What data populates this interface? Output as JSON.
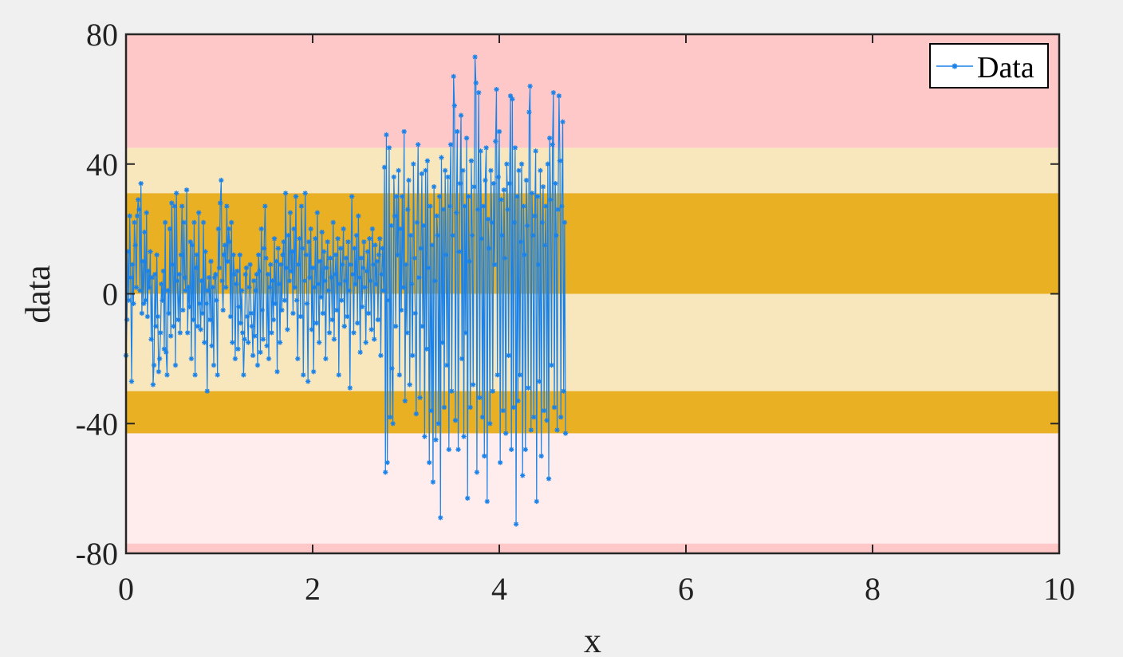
{
  "chart_data": {
    "type": "line",
    "title": "",
    "xlabel": "x",
    "ylabel": "data",
    "xlim": [
      0,
      10
    ],
    "ylim": [
      -80,
      80
    ],
    "xticks": [
      0,
      2,
      4,
      6,
      8,
      10
    ],
    "xtick_labels": [
      "0",
      "2",
      "4",
      "6",
      "8",
      "10"
    ],
    "yticks": [
      -80,
      -40,
      0,
      40,
      80
    ],
    "ytick_labels": [
      "-80",
      "-40",
      "0",
      "40",
      "80"
    ],
    "grid": false,
    "legend": {
      "placement": "top-right",
      "entries": [
        "Data"
      ]
    },
    "bands": [
      {
        "from": 45,
        "to": 80,
        "color": "#ffc8c8"
      },
      {
        "from": 31,
        "to": 45,
        "color": "#f8e6bd"
      },
      {
        "from": 0,
        "to": 31,
        "color": "#eab024"
      },
      {
        "from": -30,
        "to": 0,
        "color": "#f8e6bd"
      },
      {
        "from": -43,
        "to": -30,
        "color": "#eab024"
      },
      {
        "from": -77,
        "to": -43,
        "color": "#ffecec"
      },
      {
        "from": -80,
        "to": -77,
        "color": "#ffc8c8"
      }
    ],
    "series": [
      {
        "name": "Data",
        "color": "#1a82e8",
        "marker": "asterisk",
        "x_start": 0,
        "x_step": 0.01,
        "values": [
          -19,
          -8,
          13,
          -2,
          24,
          5,
          -27,
          9,
          -3,
          22,
          15,
          2,
          24,
          29,
          26,
          1,
          34,
          -6,
          10,
          -3,
          19,
          -2,
          25,
          -7,
          7,
          2,
          13,
          -14,
          5,
          -28,
          -22,
          6,
          -10,
          12,
          -7,
          -24,
          -20,
          -12,
          3,
          -2,
          7,
          -17,
          22,
          -18,
          -25,
          1,
          -6,
          20,
          -13,
          28,
          9,
          -10,
          27,
          -22,
          31,
          4,
          -8,
          6,
          -12,
          12,
          27,
          -5,
          22,
          5,
          1,
          32,
          -12,
          2,
          -4,
          16,
          -20,
          15,
          -8,
          22,
          -25,
          8,
          12,
          -10,
          25,
          -3,
          -11,
          4,
          -6,
          22,
          -15,
          13,
          -3,
          -30,
          1,
          5,
          -8,
          10,
          -16,
          2,
          -22,
          5,
          6,
          -2,
          -25,
          20,
          8,
          28,
          35,
          4,
          -5,
          12,
          15,
          2,
          27,
          10,
          20,
          16,
          -7,
          22,
          -15,
          12,
          6,
          -20,
          3,
          7,
          -17,
          -4,
          12,
          -9,
          1,
          -12,
          -25,
          -14,
          6,
          8,
          -7,
          -15,
          2,
          9,
          -6,
          -10,
          -19,
          4,
          -13,
          1,
          6,
          -22,
          12,
          7,
          -18,
          20,
          -5,
          -14,
          14,
          27,
          11,
          -16,
          6,
          -20,
          2,
          9,
          -12,
          4,
          -8,
          17,
          -3,
          10,
          -24,
          14,
          3,
          -15,
          9,
          -5,
          12,
          16,
          -2,
          31,
          8,
          -11,
          18,
          4,
          25,
          7,
          13,
          -6,
          20,
          2,
          30,
          -2,
          -20,
          9,
          17,
          -7,
          27,
          14,
          -25,
          4,
          31,
          12,
          -3,
          -27,
          16,
          5,
          20,
          -11,
          8,
          -24,
          2,
          17,
          -9,
          25,
          3,
          -15,
          10,
          -1,
          19,
          -6,
          13,
          4,
          -20,
          8,
          16,
          1,
          -12,
          11,
          5,
          -8,
          22,
          -14,
          6,
          12,
          -5,
          17,
          -25,
          3,
          14,
          -2,
          9,
          20,
          -10,
          4,
          11,
          -7,
          16,
          1,
          -29,
          9,
          30,
          6,
          -12,
          14,
          3,
          18,
          -9,
          24,
          5,
          -18,
          11,
          -4,
          8,
          16,
          2,
          -15,
          7,
          13,
          -6,
          17,
          4,
          -11,
          20,
          9,
          -14,
          15,
          3,
          10,
          -8,
          12,
          17,
          -19,
          6,
          14,
          1,
          39,
          -55,
          49,
          -52,
          -2,
          45,
          -38,
          21,
          -23,
          -40,
          36,
          24,
          -10,
          30,
          12,
          38,
          -25,
          20,
          -5,
          30,
          2,
          50,
          -33,
          9,
          -12,
          26,
          35,
          -28,
          18,
          3,
          -19,
          40,
          11,
          -6,
          -37,
          22,
          46,
          5,
          -32,
          14,
          37,
          -10,
          21,
          -44,
          38,
          -17,
          41,
          8,
          -52,
          27,
          -36,
          15,
          -58,
          33,
          4,
          -45,
          24,
          18,
          -40,
          30,
          -69,
          42,
          -15,
          26,
          -35,
          38,
          12,
          -22,
          36,
          -48,
          27,
          46,
          -30,
          18,
          67,
          58,
          -39,
          25,
          50,
          -48,
          13,
          34,
          55,
          -20,
          38,
          -44,
          27,
          -12,
          48,
          -63,
          30,
          10,
          -35,
          41,
          18,
          -28,
          33,
          73,
          65,
          -55,
          26,
          62,
          -32,
          44,
          17,
          -38,
          27,
          -50,
          35,
          45,
          -64,
          23,
          14,
          -40,
          38,
          22,
          -30,
          34,
          9,
          47,
          63,
          -25,
          36,
          50,
          -52,
          29,
          18,
          -36,
          32,
          11,
          -43,
          40,
          26,
          -19,
          34,
          61,
          -48,
          60,
          -35,
          22,
          45,
          -71,
          30,
          -33,
          38,
          -25,
          16,
          40,
          -56,
          27,
          12,
          -48,
          35,
          21,
          -29,
          56,
          64,
          -42,
          31,
          18,
          -38,
          24,
          44,
          -64,
          30,
          9,
          -27,
          38,
          -50,
          22,
          33,
          -36,
          15,
          27,
          -39,
          40,
          -57,
          48,
          29,
          -22,
          46,
          62,
          -35,
          34,
          18,
          -42,
          26,
          61,
          41,
          -38,
          27,
          53,
          -30,
          22,
          -43
        ]
      }
    ]
  }
}
